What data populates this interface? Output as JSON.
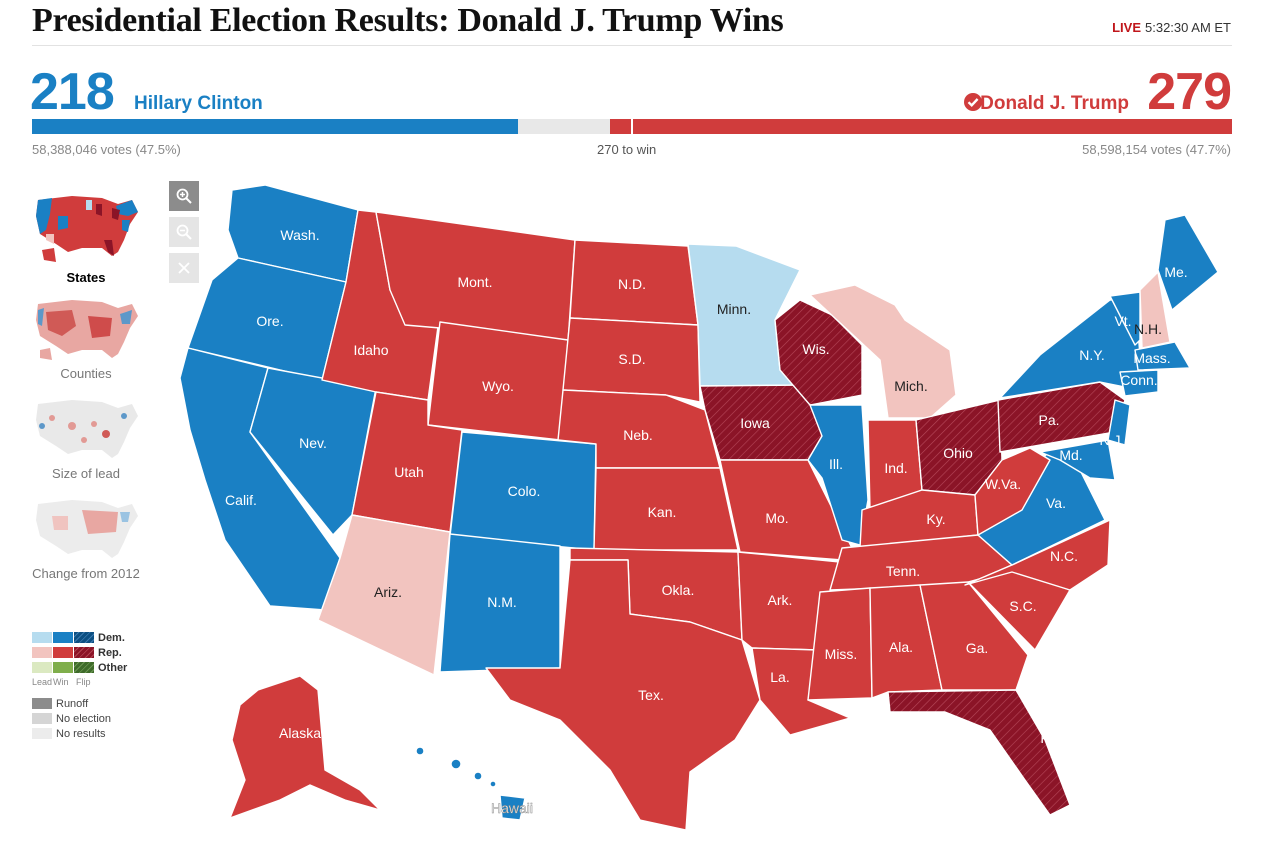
{
  "header": {
    "title": "Presidential Election Results: Donald J. Trump Wins",
    "live_label": "LIVE",
    "time": "5:32:30 AM ET"
  },
  "scoreboard": {
    "dem": {
      "electoral_votes": "218",
      "name": "Hillary Clinton",
      "votes": "58,388,046 votes (47.5%)",
      "color": "#1a80c4"
    },
    "rep": {
      "electoral_votes": "279",
      "name": "Donald J. Trump",
      "votes": "58,598,154 votes (47.7%)",
      "color": "#d03c3c",
      "winner": true
    },
    "to_win": "270 to win",
    "total_electoral": 538
  },
  "sidebar": {
    "views": [
      {
        "label": "States",
        "active": true
      },
      {
        "label": "Counties",
        "active": false
      },
      {
        "label": "Size of lead",
        "active": false
      },
      {
        "label": "Change from 2012",
        "active": false
      }
    ]
  },
  "zoom_controls": [
    "zoom-in-icon",
    "zoom-out-icon",
    "close-icon"
  ],
  "legend": {
    "dem": "Dem.",
    "rep": "Rep.",
    "other": "Other",
    "lead": "Lead",
    "win": "Win",
    "flip": "Flip",
    "runoff": "Runoff",
    "no_election": "No election",
    "no_results": "No results"
  },
  "colors": {
    "dem_lead": "#b6dcef",
    "dem_win": "#1a80c4",
    "dem_flip": "#0c4f82",
    "rep_lead": "#f2c4bf",
    "rep_win": "#d03c3c",
    "rep_flip": "#8b1427",
    "other_lead": "#dbe9c1",
    "other_win": "#7fae4b",
    "other_flip": "#3e6b2a",
    "runoff": "#8c8c8c",
    "no_election": "#d5d5d5",
    "no_results": "#ececec"
  },
  "states": {
    "wa": "Wash.",
    "or": "Ore.",
    "ca": "Calif.",
    "nv": "Nev.",
    "id": "Idaho",
    "mt": "Mont.",
    "wy": "Wyo.",
    "ut": "Utah",
    "az": "Ariz.",
    "co": "Colo.",
    "nm": "N.M.",
    "nd": "N.D.",
    "sd": "S.D.",
    "ne": "Neb.",
    "ks": "Kan.",
    "ok": "Okla.",
    "tx": "Tex.",
    "mn": "Minn.",
    "ia": "Iowa",
    "mo": "Mo.",
    "ar": "Ark.",
    "la": "La.",
    "wi": "Wis.",
    "il": "Ill.",
    "mi": "Mich.",
    "in": "Ind.",
    "oh": "Ohio",
    "ky": "Ky.",
    "tn": "Tenn.",
    "ms": "Miss.",
    "al": "Ala.",
    "ga": "Ga.",
    "fl": "Fla.",
    "sc": "S.C.",
    "nc": "N.C.",
    "va": "Va.",
    "wv": "W.Va.",
    "pa": "Pa.",
    "ny": "N.Y.",
    "vt": "Vt.",
    "nh": "N.H.",
    "me": "Me.",
    "ma": "Mass.",
    "ct": "Conn.",
    "nj": "N.J.",
    "md": "Md.",
    "ak": "Alaska",
    "hi": "Hawaii"
  }
}
